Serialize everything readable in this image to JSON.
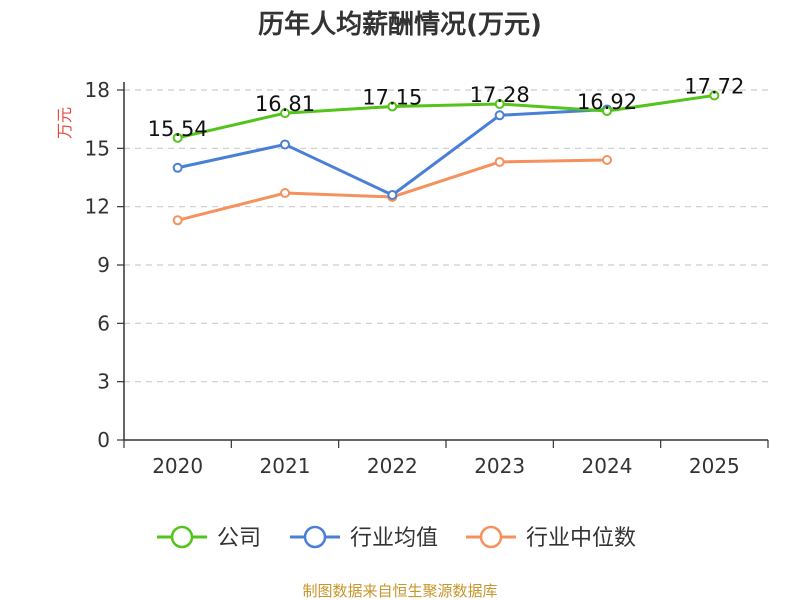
{
  "chart_data": {
    "type": "line",
    "title": "历年人均薪酬情况(万元)",
    "ylabel": "万元",
    "ylim": [
      0,
      18
    ],
    "yticks": [
      0,
      3,
      6,
      9,
      12,
      15,
      18
    ],
    "categories": [
      "2020",
      "2021",
      "2022",
      "2023",
      "2024",
      "2025"
    ],
    "grid": true,
    "legend_position": "bottom",
    "series": [
      {
        "name": "公司",
        "color": "#52c41a",
        "values": [
          15.54,
          16.81,
          17.15,
          17.28,
          16.92,
          17.72
        ],
        "labels": [
          "15.54",
          "16.81",
          "17.15",
          "17.28",
          "16.92",
          "17.72"
        ]
      },
      {
        "name": "行业均值",
        "color": "#4a7fd6",
        "values": [
          14.0,
          15.2,
          12.6,
          16.7,
          17.0,
          null
        ]
      },
      {
        "name": "行业中位数",
        "color": "#f5915c",
        "values": [
          11.3,
          12.7,
          12.5,
          14.3,
          14.4,
          null
        ]
      }
    ]
  },
  "source_note": "制图数据来自恒生聚源数据库"
}
